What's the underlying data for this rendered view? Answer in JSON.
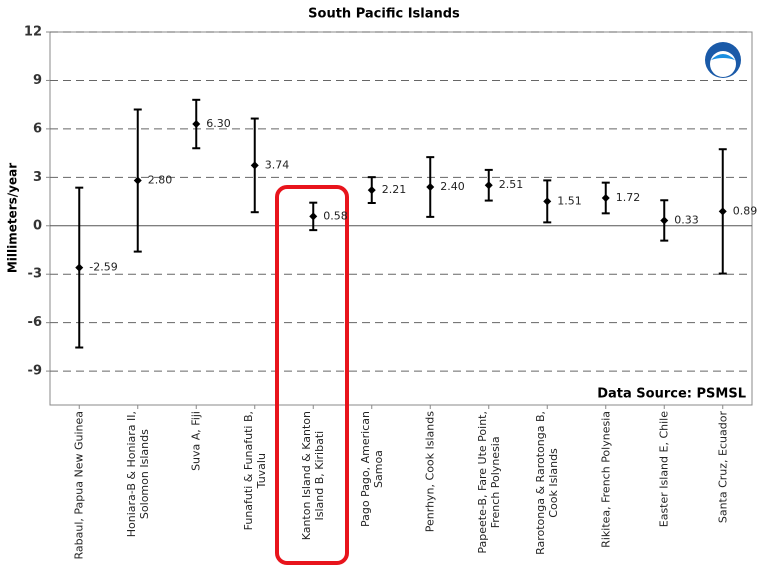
{
  "chart_data": {
    "type": "errorbar",
    "title": "South Pacific Islands",
    "y_label": "Millimeters/year",
    "annotation": "Data Source: PSMSL",
    "categories": [
      "Rabaul, Papua New Guinea",
      "Honiara-B & Honiara II,\nSolomon Islands",
      "Suva A, Fiji",
      "Funafuti & Funafuti B,\nTuvalu",
      "Kanton Island & Kanton\nIsland B, Kiribati",
      "Pago Pago, American\nSamoa",
      "Penrhyn, Cook Islands",
      "Papeete-B, Fare Ute Point,\nFrench Polynesia",
      "Rarotonga & Rarotonga B,\nCook Islands",
      "Rikitea, French Polynesia",
      "Easter Island E, Chile",
      "Santa Cruz, Ecuador"
    ],
    "values": [
      -2.59,
      2.8,
      6.3,
      3.74,
      0.58,
      2.21,
      2.4,
      2.51,
      1.51,
      1.72,
      0.33,
      0.89
    ],
    "value_labels": [
      "-2.59",
      "2.80",
      "6.30",
      "3.74",
      "0.58",
      "2.21",
      "2.40",
      "2.51",
      "1.51",
      "1.72",
      "0.33",
      "0.89"
    ],
    "errors": [
      4.95,
      4.4,
      1.5,
      2.9,
      0.85,
      0.8,
      1.85,
      0.95,
      1.3,
      0.95,
      1.25,
      3.85
    ],
    "color": "#000000",
    "ylim": [
      -11.1,
      12
    ],
    "yticks": [
      -9,
      -6,
      -3,
      0,
      3,
      6,
      9,
      12
    ],
    "grid": true
  }
}
